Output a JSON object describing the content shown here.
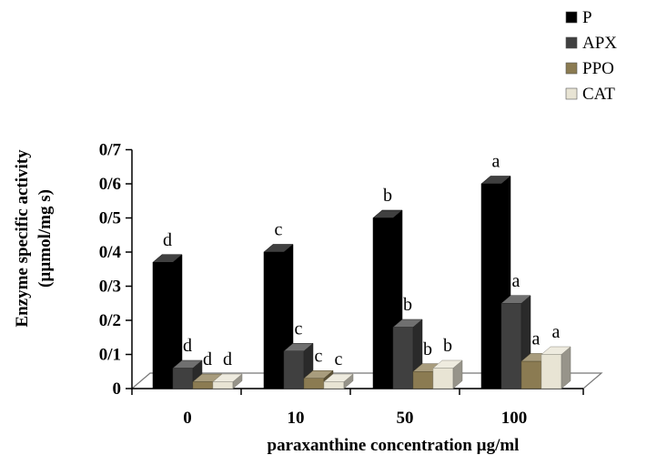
{
  "chart_data": {
    "type": "bar",
    "categories": [
      "0",
      "10",
      "50",
      "100"
    ],
    "series": [
      {
        "name": "P",
        "color": "#000000",
        "values": [
          0.37,
          0.4,
          0.5,
          0.6
        ],
        "labels": [
          "d",
          "c",
          "b",
          "a"
        ]
      },
      {
        "name": "APX",
        "color": "#404040",
        "values": [
          0.06,
          0.11,
          0.18,
          0.25
        ],
        "labels": [
          "d",
          "c",
          "b",
          "a"
        ]
      },
      {
        "name": "PPO",
        "color": "#8b7b52",
        "values": [
          0.02,
          0.03,
          0.05,
          0.08
        ],
        "labels": [
          "d",
          "c",
          "b",
          "a"
        ]
      },
      {
        "name": "CAT",
        "color": "#e8e4d4",
        "values": [
          0.02,
          0.02,
          0.06,
          0.1
        ],
        "labels": [
          "d",
          "c",
          "b",
          "a"
        ]
      }
    ],
    "yticks": [
      "0",
      "0/1",
      "0/2",
      "0/3",
      "0/4",
      "0/5",
      "0/6",
      "0/7"
    ],
    "ylim": [
      0,
      0.7
    ],
    "xlabel": "paraxanthine   concentration µg/ml",
    "ylabel": "Enzyme specific activity",
    "ylabel2": "(µµmol/mg s)",
    "legend_position": "top-right",
    "grid": false
  }
}
